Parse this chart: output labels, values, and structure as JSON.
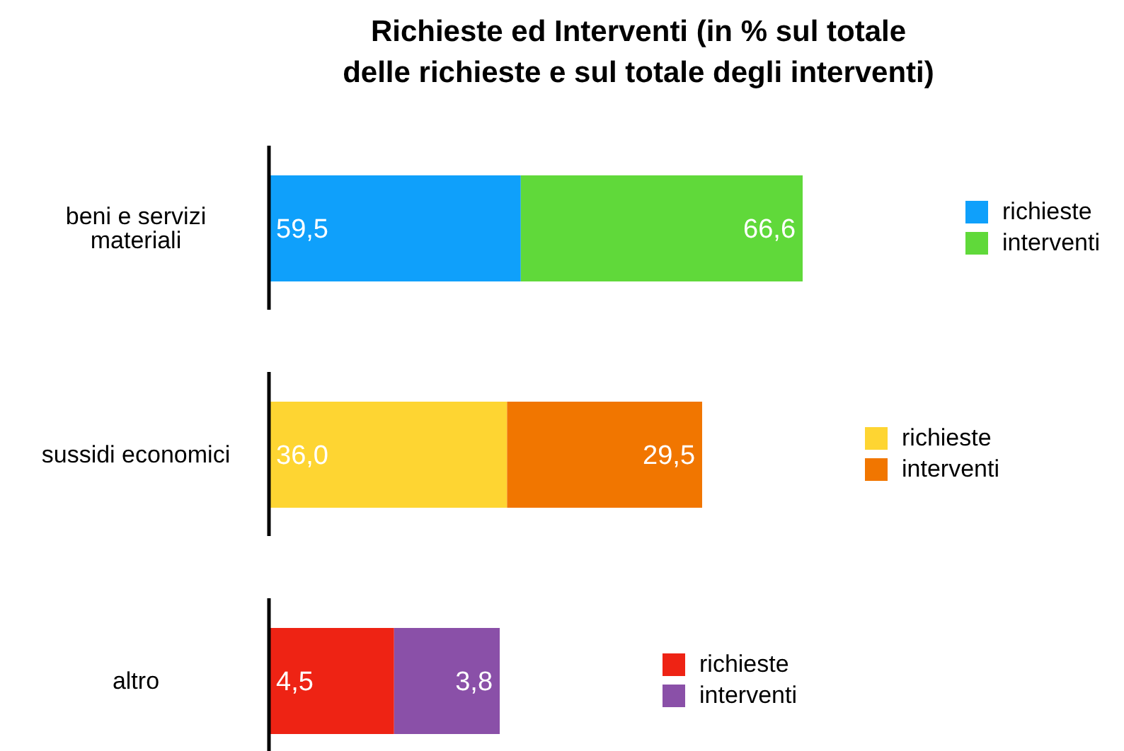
{
  "chart_data": [
    {
      "type": "bar",
      "title": "Richieste ed Interventi (in % sul totale delle richieste e sul totale degli interventi)",
      "orientation": "horizontal",
      "stacked": true,
      "legend": "right",
      "categories": [
        "beni e servizi materiali"
      ],
      "series": [
        {
          "name": "richieste",
          "color": "#0fa0fb",
          "values": [
            59.5
          ],
          "value_labels": [
            "59,5"
          ]
        },
        {
          "name": "interventi",
          "color": "#60d93a",
          "values": [
            66.6
          ],
          "value_labels": [
            "66,6"
          ]
        }
      ]
    },
    {
      "type": "bar",
      "orientation": "horizontal",
      "stacked": true,
      "legend": "right",
      "categories": [
        "sussidi economici"
      ],
      "series": [
        {
          "name": "richieste",
          "color": "#fed532",
          "values": [
            36.0
          ],
          "value_labels": [
            "36,0"
          ]
        },
        {
          "name": "interventi",
          "color": "#f17600",
          "values": [
            29.5
          ],
          "value_labels": [
            "29,5"
          ]
        }
      ]
    },
    {
      "type": "bar",
      "orientation": "horizontal",
      "stacked": true,
      "legend": "right",
      "categories": [
        "altro"
      ],
      "series": [
        {
          "name": "richieste",
          "color": "#ee2314",
          "values": [
            4.5
          ],
          "value_labels": [
            "4,5"
          ]
        },
        {
          "name": "interventi",
          "color": "#8a50a8",
          "values": [
            3.8
          ],
          "value_labels": [
            "3,8"
          ]
        }
      ]
    }
  ]
}
